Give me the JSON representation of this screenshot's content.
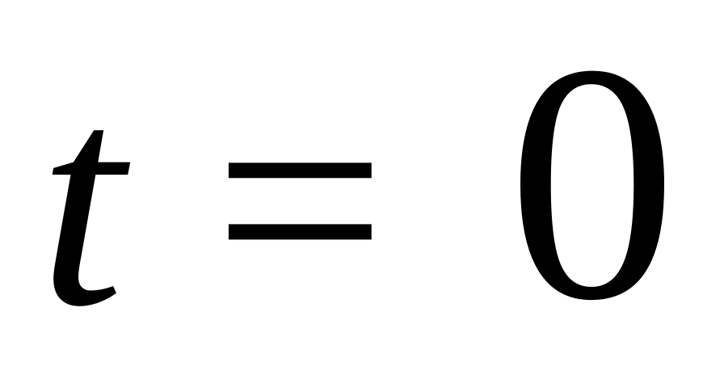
{
  "equation": {
    "variable": "t",
    "operator": "=",
    "value": "0"
  }
}
